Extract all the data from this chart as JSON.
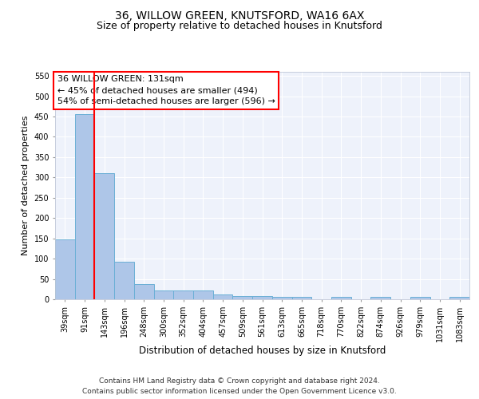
{
  "title1": "36, WILLOW GREEN, KNUTSFORD, WA16 6AX",
  "title2": "Size of property relative to detached houses in Knutsford",
  "xlabel": "Distribution of detached houses by size in Knutsford",
  "ylabel": "Number of detached properties",
  "bins": [
    "39sqm",
    "91sqm",
    "143sqm",
    "196sqm",
    "248sqm",
    "300sqm",
    "352sqm",
    "404sqm",
    "457sqm",
    "509sqm",
    "561sqm",
    "613sqm",
    "665sqm",
    "718sqm",
    "770sqm",
    "822sqm",
    "874sqm",
    "926sqm",
    "979sqm",
    "1031sqm",
    "1083sqm"
  ],
  "values": [
    147,
    455,
    310,
    92,
    38,
    22,
    22,
    22,
    12,
    7,
    7,
    5,
    5,
    0,
    5,
    0,
    5,
    0,
    5,
    0,
    5
  ],
  "bar_color": "#aec6e8",
  "bar_edge_color": "#6aafd6",
  "red_line_x": 1.5,
  "annotation_line1": "36 WILLOW GREEN: 131sqm",
  "annotation_line2": "← 45% of detached houses are smaller (494)",
  "annotation_line3": "54% of semi-detached houses are larger (596) →",
  "annotation_box_color": "white",
  "annotation_border_color": "red",
  "ylim": [
    0,
    560
  ],
  "yticks": [
    0,
    50,
    100,
    150,
    200,
    250,
    300,
    350,
    400,
    450,
    500,
    550
  ],
  "footer1": "Contains HM Land Registry data © Crown copyright and database right 2024.",
  "footer2": "Contains public sector information licensed under the Open Government Licence v3.0.",
  "bg_color": "#eef2fb",
  "grid_color": "white",
  "title1_fontsize": 10,
  "title2_fontsize": 9,
  "xlabel_fontsize": 8.5,
  "ylabel_fontsize": 8,
  "tick_fontsize": 7,
  "annotation_fontsize": 8,
  "footer_fontsize": 6.5
}
